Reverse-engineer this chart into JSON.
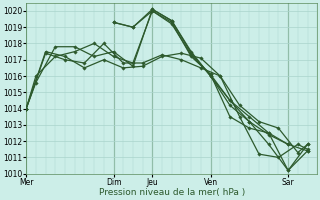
{
  "xlabel": "Pression niveau de la mer( hPa )",
  "background_color": "#cceee8",
  "grid_color": "#aad4cc",
  "line_color": "#2d5a2d",
  "vline_color": "#5a8a5a",
  "ylim": [
    1010,
    1020.5
  ],
  "yticks": [
    1010,
    1011,
    1012,
    1013,
    1014,
    1015,
    1016,
    1017,
    1018,
    1019,
    1020
  ],
  "day_labels": [
    "Mer",
    "Dim",
    "Jeu",
    "Ven",
    "Sar"
  ],
  "day_positions": [
    0,
    9,
    13,
    19,
    27
  ],
  "xlim": [
    0,
    30
  ],
  "series": [
    {
      "x": [
        0,
        1,
        3,
        5,
        7,
        9,
        11,
        13,
        15,
        17,
        19,
        21,
        23,
        25,
        27
      ],
      "y": [
        1014.0,
        1015.6,
        1017.8,
        1017.8,
        1017.2,
        1017.5,
        1016.6,
        1020.1,
        1019.4,
        1017.5,
        1016.0,
        1014.5,
        1013.2,
        1012.4,
        1011.8
      ]
    },
    {
      "x": [
        0,
        1,
        3,
        5,
        7,
        9,
        11,
        13,
        15,
        17,
        19,
        21,
        23,
        25,
        27,
        29
      ],
      "y": [
        1014.0,
        1016.0,
        1017.2,
        1017.5,
        1018.0,
        1017.2,
        1016.8,
        1020.0,
        1019.2,
        1017.3,
        1016.1,
        1014.5,
        1013.5,
        1012.5,
        1010.2,
        1011.4
      ]
    },
    {
      "x": [
        0,
        2,
        4,
        6,
        8,
        10,
        12,
        14,
        16,
        18,
        20,
        22,
        24,
        26,
        28,
        29
      ],
      "y": [
        1014.0,
        1017.5,
        1017.2,
        1016.5,
        1017.0,
        1016.5,
        1016.6,
        1017.2,
        1017.4,
        1017.1,
        1016.0,
        1014.2,
        1013.2,
        1012.8,
        1011.3,
        1011.8
      ]
    },
    {
      "x": [
        0,
        2,
        4,
        6,
        8,
        10,
        12,
        14,
        16,
        18,
        20,
        22,
        24,
        26,
        28,
        29
      ],
      "y": [
        1014.0,
        1017.4,
        1017.0,
        1016.8,
        1018.0,
        1016.8,
        1016.8,
        1017.3,
        1017.0,
        1016.5,
        1016.0,
        1013.5,
        1011.2,
        1011.0,
        1011.8,
        1011.5
      ]
    },
    {
      "x": [
        9,
        11,
        13,
        15,
        17,
        19,
        21,
        23,
        25,
        27,
        29
      ],
      "y": [
        1019.3,
        1019.0,
        1020.1,
        1019.4,
        1017.4,
        1016.0,
        1014.2,
        1013.2,
        1011.8,
        1010.2,
        1011.8
      ]
    },
    {
      "x": [
        9,
        11,
        13,
        15,
        17,
        19,
        21,
        23,
        25,
        27,
        29
      ],
      "y": [
        1019.3,
        1019.0,
        1020.0,
        1019.3,
        1017.2,
        1016.1,
        1013.5,
        1012.8,
        1012.5,
        1011.8,
        1011.4
      ]
    }
  ]
}
